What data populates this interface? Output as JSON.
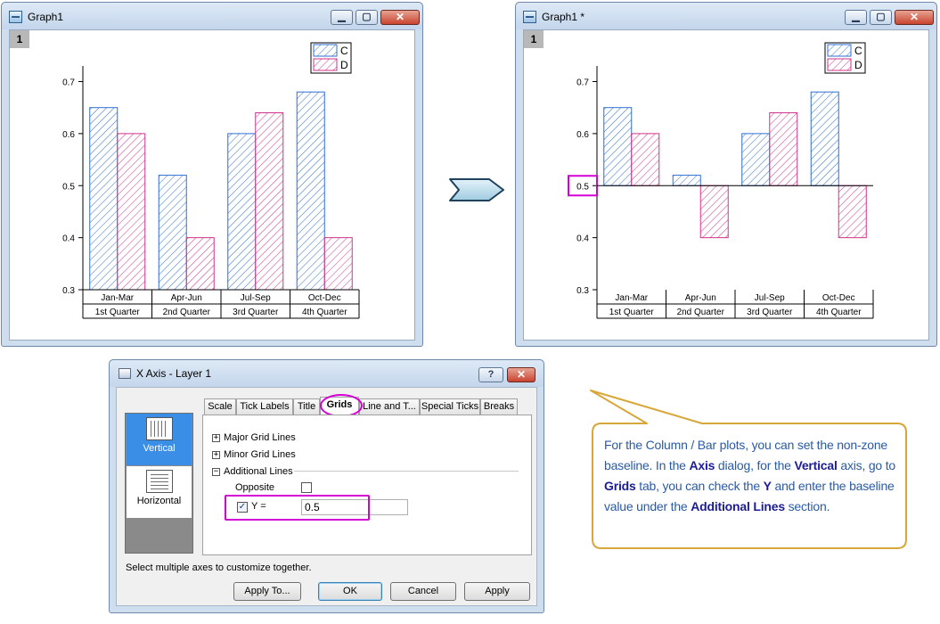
{
  "left_window": {
    "title": "Graph1",
    "layer_badge": "1",
    "chart_data": {
      "type": "bar",
      "categories": [
        "Jan-Mar",
        "Apr-Jun",
        "Jul-Sep",
        "Oct-Dec"
      ],
      "group_labels": [
        "1st Quarter",
        "2nd Quarter",
        "3rd Quarter",
        "4th Quarter"
      ],
      "series": [
        {
          "name": "C",
          "values": [
            0.65,
            0.52,
            0.6,
            0.68
          ],
          "color": "#2f6fd0"
        },
        {
          "name": "D",
          "values": [
            0.6,
            0.4,
            0.64,
            0.4
          ],
          "color": "#d0338a"
        }
      ],
      "ylim": [
        0.3,
        0.73
      ],
      "yticks": [
        "0.3",
        "0.4",
        "0.5",
        "0.6",
        "0.7"
      ],
      "baseline": 0.3,
      "legend_position": "top-right"
    }
  },
  "right_window": {
    "title": "Graph1 *",
    "layer_badge": "1",
    "chart_data": {
      "type": "bar",
      "categories": [
        "Jan-Mar",
        "Apr-Jun",
        "Jul-Sep",
        "Oct-Dec"
      ],
      "group_labels": [
        "1st Quarter",
        "2nd Quarter",
        "3rd Quarter",
        "4th Quarter"
      ],
      "series": [
        {
          "name": "C",
          "values": [
            0.65,
            0.52,
            0.6,
            0.68
          ],
          "color": "#2f6fd0"
        },
        {
          "name": "D",
          "values": [
            0.6,
            0.4,
            0.64,
            0.4
          ],
          "color": "#d0338a"
        }
      ],
      "ylim": [
        0.3,
        0.73
      ],
      "yticks": [
        "0.3",
        "0.4",
        "0.5",
        "0.6",
        "0.7"
      ],
      "baseline": 0.5,
      "highlighted_tick": "0.5",
      "legend_position": "top-right"
    }
  },
  "dialog": {
    "title": "X Axis - Layer 1",
    "help_glyph": "?",
    "close_glyph": "✕",
    "side_items": [
      "Vertical",
      "Horizontal"
    ],
    "tabs": [
      "Scale",
      "Tick Labels",
      "Title",
      "Grids",
      "Line and T...",
      "Special Ticks",
      "Breaks"
    ],
    "active_tab": "Grids",
    "tree": [
      "Major Grid Lines",
      "Minor Grid Lines",
      "Additional Lines"
    ],
    "opposite_label": "Opposite",
    "opposite_checked": false,
    "y_label": "Y =",
    "y_checked": true,
    "y_value": "0.5",
    "hint": "Select multiple axes to customize together.",
    "buttons": {
      "apply_to": "Apply To...",
      "ok": "OK",
      "cancel": "Cancel",
      "apply": "Apply"
    }
  },
  "callout": {
    "border_color": "#d8a73a",
    "text_parts": [
      {
        "t": "For the Column / Bar plots, you can set the non-zone baseline. In the ",
        "b": false
      },
      {
        "t": "Axis",
        "b": true
      },
      {
        "t": " dialog, for the ",
        "b": false
      },
      {
        "t": "Vertical",
        "b": true
      },
      {
        "t": " axis, go to ",
        "b": false
      },
      {
        "t": "Grids",
        "b": true
      },
      {
        "t": " tab, you can check the ",
        "b": false
      },
      {
        "t": "Y",
        "b": true
      },
      {
        "t": " and enter the baseline value under the ",
        "b": false
      },
      {
        "t": "Additional Lines",
        "b": true
      },
      {
        "t": " section.",
        "b": false
      }
    ]
  }
}
